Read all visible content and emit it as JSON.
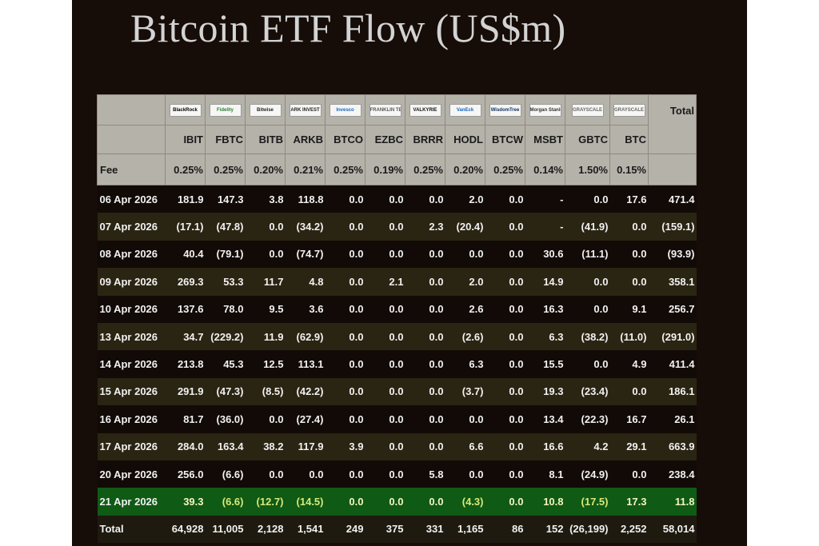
{
  "title": "Bitcoin ETF Flow (US$m)",
  "total_header": "Total",
  "fee_label": "Fee",
  "funds": [
    {
      "ticker": "IBIT",
      "fee": "0.25%",
      "logo": "BlackRock",
      "logo_color": "#000000"
    },
    {
      "ticker": "FBTC",
      "fee": "0.25%",
      "logo": "Fidelity",
      "logo_color": "#2e7d32"
    },
    {
      "ticker": "BITB",
      "fee": "0.20%",
      "logo": "Bitwise",
      "logo_color": "#222222"
    },
    {
      "ticker": "ARKB",
      "fee": "0.21%",
      "logo": "ARK INVEST",
      "logo_color": "#222222"
    },
    {
      "ticker": "BTCO",
      "fee": "0.25%",
      "logo": "Invesco",
      "logo_color": "#1565c0"
    },
    {
      "ticker": "EZBC",
      "fee": "0.19%",
      "logo": "FRANKLIN TEMPLETON",
      "logo_color": "#555555"
    },
    {
      "ticker": "BRRR",
      "fee": "0.25%",
      "logo": "VALKYRIE",
      "logo_color": "#111111"
    },
    {
      "ticker": "HODL",
      "fee": "0.20%",
      "logo": "VanEck",
      "logo_color": "#1565c0"
    },
    {
      "ticker": "BTCW",
      "fee": "0.25%",
      "logo": "WisdomTree",
      "logo_color": "#0d2b5e"
    },
    {
      "ticker": "MSBT",
      "fee": "0.14%",
      "logo": "Morgan Stanley",
      "logo_color": "#333333"
    },
    {
      "ticker": "GBTC",
      "fee": "1.50%",
      "logo": "GRAYSCALE",
      "logo_color": "#666666"
    },
    {
      "ticker": "BTC",
      "fee": "0.15%",
      "logo": "GRAYSCALE",
      "logo_color": "#666666"
    }
  ],
  "rows": [
    {
      "date": "06 Apr 2026",
      "vals": [
        "181.9",
        "147.3",
        "3.8",
        "118.8",
        "0.0",
        "0.0",
        "0.0",
        "2.0",
        "0.0",
        "-",
        "0.0",
        "17.6"
      ],
      "total": "471.4",
      "style": "dark"
    },
    {
      "date": "07 Apr 2026",
      "vals": [
        "(17.1)",
        "(47.8)",
        "0.0",
        "(34.2)",
        "0.0",
        "0.0",
        "2.3",
        "(20.4)",
        "0.0",
        "-",
        "(41.9)",
        "0.0"
      ],
      "total": "(159.1)",
      "style": "olive"
    },
    {
      "date": "08 Apr 2026",
      "vals": [
        "40.4",
        "(79.1)",
        "0.0",
        "(74.7)",
        "0.0",
        "0.0",
        "0.0",
        "0.0",
        "0.0",
        "30.6",
        "(11.1)",
        "0.0"
      ],
      "total": "(93.9)",
      "style": "dark"
    },
    {
      "date": "09 Apr 2026",
      "vals": [
        "269.3",
        "53.3",
        "11.7",
        "4.8",
        "0.0",
        "2.1",
        "0.0",
        "2.0",
        "0.0",
        "14.9",
        "0.0",
        "0.0"
      ],
      "total": "358.1",
      "style": "olive"
    },
    {
      "date": "10 Apr 2026",
      "vals": [
        "137.6",
        "78.0",
        "9.5",
        "3.6",
        "0.0",
        "0.0",
        "0.0",
        "2.6",
        "0.0",
        "16.3",
        "0.0",
        "9.1"
      ],
      "total": "256.7",
      "style": "dark"
    },
    {
      "date": "13 Apr 2026",
      "vals": [
        "34.7",
        "(229.2)",
        "11.9",
        "(62.9)",
        "0.0",
        "0.0",
        "0.0",
        "(2.6)",
        "0.0",
        "6.3",
        "(38.2)",
        "(11.0)"
      ],
      "total": "(291.0)",
      "style": "olive"
    },
    {
      "date": "14 Apr 2026",
      "vals": [
        "213.8",
        "45.3",
        "12.5",
        "113.1",
        "0.0",
        "0.0",
        "0.0",
        "6.3",
        "0.0",
        "15.5",
        "0.0",
        "4.9"
      ],
      "total": "411.4",
      "style": "dark"
    },
    {
      "date": "15 Apr 2026",
      "vals": [
        "291.9",
        "(47.3)",
        "(8.5)",
        "(42.2)",
        "0.0",
        "0.0",
        "0.0",
        "(3.7)",
        "0.0",
        "19.3",
        "(23.4)",
        "0.0"
      ],
      "total": "186.1",
      "style": "olive"
    },
    {
      "date": "16 Apr 2026",
      "vals": [
        "81.7",
        "(36.0)",
        "0.0",
        "(27.4)",
        "0.0",
        "0.0",
        "0.0",
        "0.0",
        "0.0",
        "13.4",
        "(22.3)",
        "16.7"
      ],
      "total": "26.1",
      "style": "dark"
    },
    {
      "date": "17 Apr 2026",
      "vals": [
        "284.0",
        "163.4",
        "38.2",
        "117.9",
        "3.9",
        "0.0",
        "0.0",
        "6.6",
        "0.0",
        "16.6",
        "4.2",
        "29.1"
      ],
      "total": "663.9",
      "style": "olive"
    },
    {
      "date": "20 Apr 2026",
      "vals": [
        "256.0",
        "(6.6)",
        "0.0",
        "0.0",
        "0.0",
        "0.0",
        "5.8",
        "0.0",
        "0.0",
        "8.1",
        "(24.9)",
        "0.0"
      ],
      "total": "238.4",
      "style": "dark"
    },
    {
      "date": "21 Apr 2026",
      "vals": [
        "39.3",
        "(6.6)",
        "(12.7)",
        "(14.5)",
        "0.0",
        "0.0",
        "0.0",
        "(4.3)",
        "0.0",
        "10.8",
        "(17.5)",
        "17.3"
      ],
      "total": "11.8",
      "style": "green"
    }
  ],
  "totals": {
    "label": "Total",
    "vals": [
      "64,928",
      "11,005",
      "2,128",
      "1,541",
      "249",
      "375",
      "331",
      "1,165",
      "86",
      "152",
      "(26,199)",
      "2,252"
    ],
    "total": "58,014"
  },
  "colors": {
    "panel": "#160c08",
    "header": "#b5b2aa",
    "negative": "#ff7060",
    "highlight_row": "#0f5a14"
  }
}
